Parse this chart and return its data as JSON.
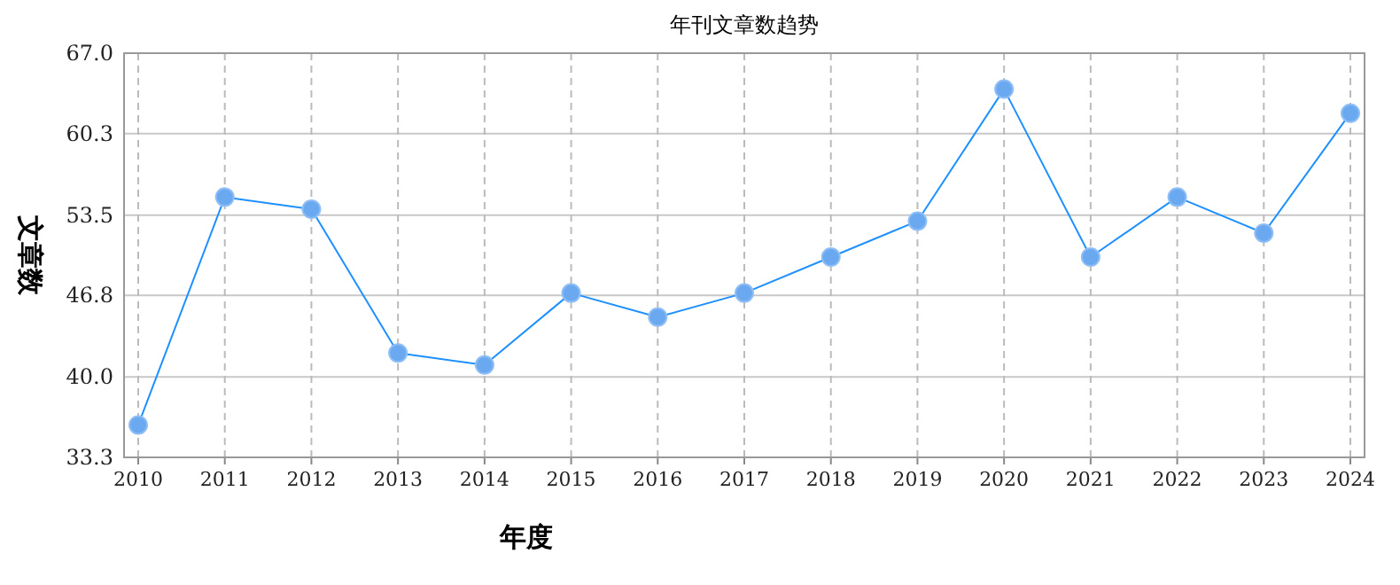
{
  "chart_data": {
    "type": "line",
    "title": "年刊文章数趋势",
    "xlabel": "年度",
    "ylabel": "文章数",
    "categories": [
      "2010",
      "2011",
      "2012",
      "2013",
      "2014",
      "2015",
      "2016",
      "2017",
      "2018",
      "2019",
      "2020",
      "2021",
      "2022",
      "2023",
      "2024"
    ],
    "series": [
      {
        "color": "#1e90ff",
        "values": [
          36,
          55,
          54,
          42,
          41,
          47,
          45,
          47,
          50,
          53,
          64,
          50,
          55,
          52,
          62
        ]
      }
    ],
    "ylim": [
      33.3,
      67.0
    ],
    "yticks": [
      {
        "value": 33.3,
        "label": "33.3"
      },
      {
        "value": 40.0,
        "label": "40.0"
      },
      {
        "value": 46.8,
        "label": "46.8"
      },
      {
        "value": 53.5,
        "label": "53.5"
      },
      {
        "value": 60.3,
        "label": "60.3"
      },
      {
        "value": 67.0,
        "label": "67.0"
      }
    ],
    "grid": true,
    "marker": "circle",
    "line_style": "solid"
  }
}
